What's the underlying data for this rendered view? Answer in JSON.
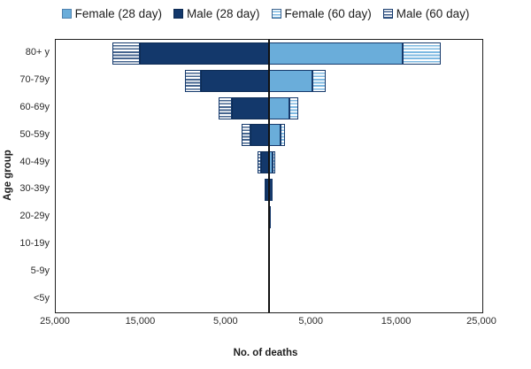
{
  "legend": {
    "items": [
      {
        "label": "Female (28 day)",
        "swatch": "female-solid"
      },
      {
        "label": "Male (28 day)",
        "swatch": "male-solid"
      },
      {
        "label": "Female (60 day)",
        "swatch": "female-hatch"
      },
      {
        "label": "Male (60 day)",
        "swatch": "male-hatch"
      }
    ]
  },
  "axes": {
    "x_title": "No. of deaths",
    "y_title": "Age group"
  },
  "colors": {
    "male": "#13386b",
    "female": "#6aadda",
    "axis": "#1f1f1f",
    "background": "#ffffff"
  },
  "chart_data": {
    "type": "bar",
    "subtype": "diverging_population_pyramid",
    "title": "",
    "xlabel": "No. of deaths",
    "ylabel": "Age group",
    "grid": false,
    "legend_position": "top",
    "x_axis": {
      "min": -25000,
      "max": 25000,
      "tick_values": [
        -25000,
        -15000,
        -5000,
        5000,
        15000,
        25000
      ],
      "tick_labels": [
        "25,000",
        "15,000",
        "5,000",
        "5,000",
        "15,000",
        "25,000"
      ]
    },
    "categories": [
      "80+ y",
      "70-79y",
      "60-69y",
      "50-59y",
      "40-49y",
      "30-39y",
      "20-29y",
      "10-19y",
      "5-9y",
      "<5y"
    ],
    "values_note": "60-day values are cumulative bar totals (include the 28-day deaths); estimated from pixel measurement",
    "series": [
      {
        "name": "Male (28 day)",
        "side": "left",
        "pattern": "solid",
        "color": "#13386b",
        "values": [
          15100,
          8000,
          4400,
          2200,
          900,
          380,
          120,
          30,
          8,
          12
        ]
      },
      {
        "name": "Male (60 day)",
        "side": "left",
        "pattern": "hatch",
        "color": "#13386b",
        "values": [
          18400,
          9900,
          5900,
          3200,
          1300,
          500,
          160,
          40,
          10,
          15
        ]
      },
      {
        "name": "Female (28 day)",
        "side": "right",
        "pattern": "solid",
        "color": "#6aadda",
        "values": [
          15700,
          5100,
          2400,
          1350,
          420,
          210,
          90,
          20,
          5,
          10
        ]
      },
      {
        "name": "Female (60 day)",
        "side": "right",
        "pattern": "hatch",
        "color": "#6aadda",
        "values": [
          20100,
          6600,
          3400,
          1900,
          680,
          290,
          120,
          25,
          6,
          12
        ]
      }
    ]
  }
}
